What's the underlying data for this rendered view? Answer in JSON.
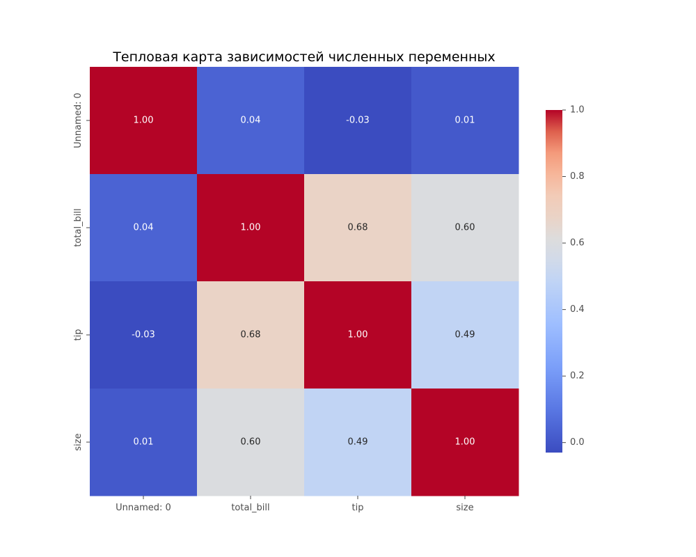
{
  "chart_data": {
    "type": "heatmap",
    "title": "Тепловая карта зависимостей численных переменных",
    "xlabel": "",
    "ylabel": "",
    "x_categories": [
      "Unnamed: 0",
      "total_bill",
      "tip",
      "size"
    ],
    "y_categories": [
      "Unnamed: 0",
      "total_bill",
      "tip",
      "size"
    ],
    "values": [
      [
        1.0,
        0.04,
        -0.03,
        0.01
      ],
      [
        0.04,
        1.0,
        0.68,
        0.6
      ],
      [
        -0.03,
        0.68,
        1.0,
        0.49
      ],
      [
        0.01,
        0.6,
        0.49,
        1.0
      ]
    ],
    "annotation_format": "0.00",
    "colormap": "coolwarm",
    "color_scale": {
      "vmin": -0.03,
      "vmax": 1.0,
      "stops": [
        [
          0.0,
          "#3b4cc0"
        ],
        [
          0.125,
          "#5977e3"
        ],
        [
          0.25,
          "#7b9ff9"
        ],
        [
          0.375,
          "#9ebeff"
        ],
        [
          0.5,
          "#c0d4f5"
        ],
        [
          0.5625,
          "#d1dae9"
        ],
        [
          0.625,
          "#dddcdc"
        ],
        [
          0.6875,
          "#ead3c6"
        ],
        [
          0.75,
          "#f2cbb7"
        ],
        [
          0.8125,
          "#f6b69a"
        ],
        [
          0.875,
          "#f49a7b"
        ],
        [
          0.9375,
          "#de604d"
        ],
        [
          1.0,
          "#b40426"
        ]
      ]
    },
    "colorbar": {
      "ticks": [
        0.0,
        0.2,
        0.4,
        0.6,
        0.8,
        1.0
      ],
      "tick_labels": [
        "0.0",
        "0.2",
        "0.4",
        "0.6",
        "0.8",
        "1.0"
      ],
      "placement": "right"
    },
    "text_colors": {
      "light": "#ffffff",
      "dark": "#262626"
    },
    "grid": false,
    "legend": "none"
  }
}
